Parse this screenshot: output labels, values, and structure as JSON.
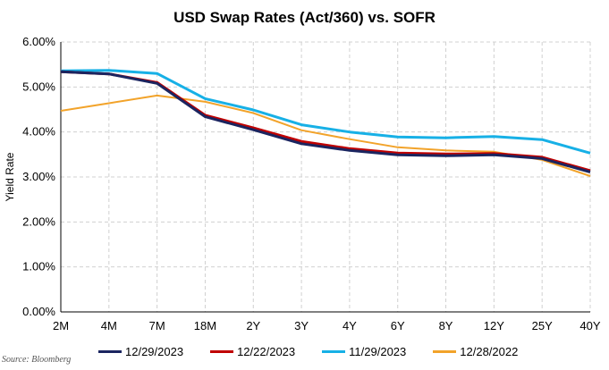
{
  "chart_data": {
    "type": "line",
    "title": "USD Swap Rates (Act/360) vs. SOFR",
    "xlabel": "",
    "ylabel": "Yield Rate",
    "categories": [
      "2M",
      "4M",
      "7M",
      "18M",
      "2Y",
      "3Y",
      "4Y",
      "6Y",
      "8Y",
      "12Y",
      "25Y",
      "40Y"
    ],
    "ylim": [
      0,
      6
    ],
    "yticks": [
      0,
      1,
      2,
      3,
      4,
      5,
      6
    ],
    "ytick_labels": [
      "0.00%",
      "1.00%",
      "2.00%",
      "3.00%",
      "4.00%",
      "5.00%",
      "6.00%"
    ],
    "grid": true,
    "legend_position": "bottom",
    "series": [
      {
        "name": "12/29/2023",
        "color": "#1b2560",
        "values": [
          5.34,
          5.29,
          5.08,
          4.34,
          4.05,
          3.74,
          3.59,
          3.49,
          3.47,
          3.49,
          3.41,
          3.11
        ]
      },
      {
        "name": "12/22/2023",
        "color": "#c00000",
        "values": [
          5.34,
          5.29,
          5.1,
          4.37,
          4.09,
          3.79,
          3.63,
          3.53,
          3.51,
          3.52,
          3.44,
          3.14
        ]
      },
      {
        "name": "11/29/2023",
        "color": "#17b0e6",
        "values": [
          5.36,
          5.37,
          5.3,
          4.74,
          4.49,
          4.16,
          4.0,
          3.89,
          3.87,
          3.9,
          3.83,
          3.53
        ]
      },
      {
        "name": "12/28/2022",
        "color": "#f2a32a",
        "values": [
          4.47,
          4.64,
          4.81,
          4.67,
          4.42,
          4.04,
          3.84,
          3.66,
          3.59,
          3.56,
          3.38,
          3.02
        ]
      }
    ]
  },
  "source": "Source: Bloomberg"
}
